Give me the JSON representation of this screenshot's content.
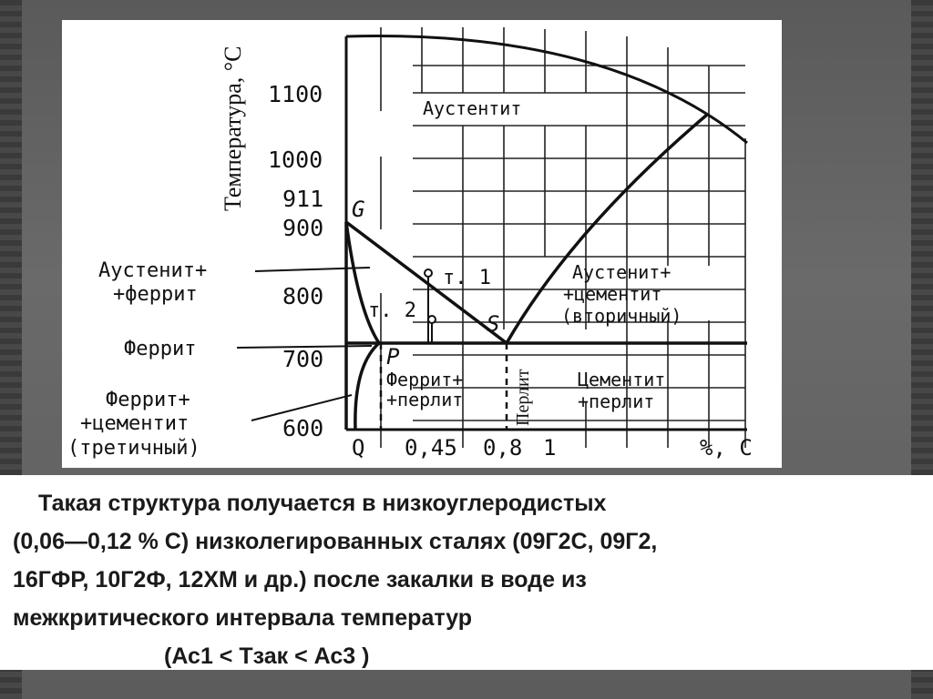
{
  "slide": {
    "caption_lines": [
      "Такая структура получается в низкоуглеродистых",
      "(0,06—0,12 % С) низколегированных сталях (09Г2С, 09Г2,",
      "16ГФР, 10Г2Ф, 12ХМ и др.) после закалки в воде из",
      "межкритического интервала температур",
      "(Ас1 < Тзак < Ас3 )"
    ]
  },
  "diagram": {
    "y_axis_label": "Температура, °С",
    "y_ticks": [
      "1100",
      "1000",
      "911",
      "900",
      "800",
      "700",
      "600"
    ],
    "x_ticks": [
      "Q",
      "0,45",
      "0,8",
      "1",
      "%, C"
    ],
    "points": {
      "G": "G",
      "P": "P",
      "S": "S",
      "t1": "т. 1",
      "t2": "т. 2"
    },
    "regions": {
      "austenite": "Аустентит",
      "austenite_cementite": [
        "Аустенит+",
        "+цементит",
        "(вторичный)"
      ],
      "ferrite_pearlite": [
        "Феррит+",
        "+перлит"
      ],
      "pearlite": "Перлит",
      "cementite_pearlite": [
        "Цементит",
        "+перлит"
      ]
    },
    "callouts": {
      "austenite_ferrite": [
        "Аустенит+",
        "+феррит"
      ],
      "ferrite": "Феррит",
      "ferrite_cementite": [
        "Феррит+",
        "+цементит",
        "(третичный)"
      ]
    }
  }
}
